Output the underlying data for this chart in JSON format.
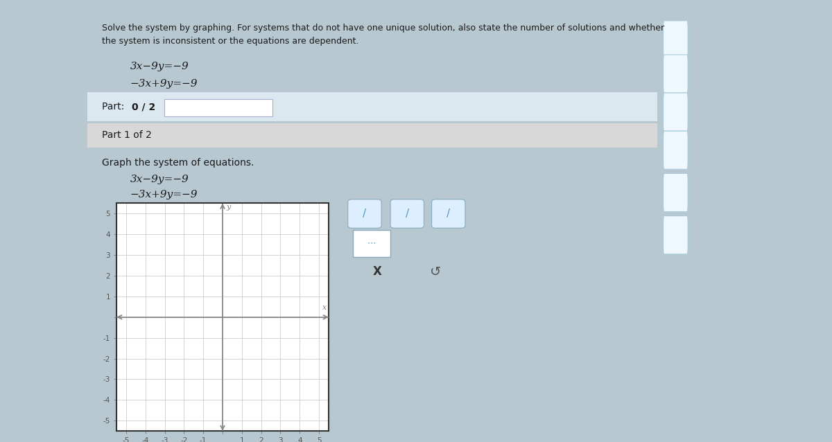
{
  "bg_outer": "#b8c8d0",
  "bg_page": "#ffffff",
  "bg_section_blue": "#dce8f0",
  "bg_section_gray": "#d8d8d8",
  "text_color": "#1a1a1a",
  "title_text_line1": "Solve the system by graphing. For systems that do not have one unique solution, also state the number of solutions and whether",
  "title_text_line2": "the system is inconsistent or the equations are dependent.",
  "eq1": "3x−9y=−9",
  "eq2": "−3x+9y=−9",
  "part_label": "Part: ",
  "part_bold": "0 / 2",
  "part1_label": "Part 1 of 2",
  "graph_title": "Graph the system of equations.",
  "graph_eq1": "3x−9y=−9",
  "graph_eq2": "−3x+9y=−9",
  "grid_color": "#cccccc",
  "axis_color": "#888888",
  "tick_label_color": "#555555",
  "sidebar_bg": "#ffffff",
  "sidebar_icon_color": "#5599bb"
}
